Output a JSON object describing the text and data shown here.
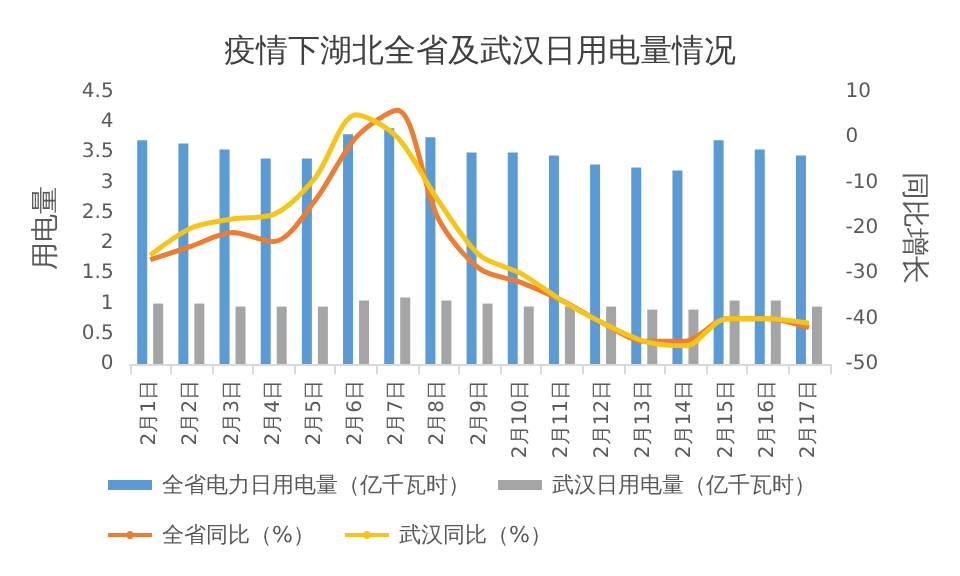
{
  "chart_data": {
    "type": "bar",
    "title": "疫情下湖北全省及武汉日用电量情况",
    "ylabel": "用电量",
    "y2label": "同比增长",
    "categories": [
      "2月1日",
      "2月2日",
      "2月3日",
      "2月4日",
      "2月5日",
      "2月6日",
      "2月7日",
      "2月8日",
      "2月9日",
      "2月10日",
      "2月11日",
      "2月12日",
      "2月13日",
      "2月14日",
      "2月15日",
      "2月16日",
      "2月17日"
    ],
    "series": [
      {
        "name": "全省电力日用电量（亿千瓦时）",
        "color": "#5b9bd5",
        "values": [
          3.7,
          3.65,
          3.55,
          3.4,
          3.4,
          3.8,
          3.9,
          3.75,
          3.5,
          3.5,
          3.45,
          3.3,
          3.25,
          3.2,
          3.7,
          3.55,
          3.45
        ]
      },
      {
        "name": "武汉日用电量（亿千瓦时）",
        "color": "#a5a5a5",
        "values": [
          1.0,
          1.0,
          0.95,
          0.95,
          0.95,
          1.05,
          1.1,
          1.05,
          1.0,
          0.95,
          0.95,
          0.95,
          0.9,
          0.9,
          1.05,
          1.05,
          0.95
        ]
      },
      {
        "name": "全省同比（%）",
        "type": "line",
        "axis": "y2",
        "color": "#ed7d31",
        "values": [
          -27,
          -24,
          -21,
          -23,
          -14,
          0,
          6,
          -18,
          -29,
          -32,
          -36,
          -41,
          -45,
          -45,
          -40,
          -40,
          -42
        ]
      },
      {
        "name": "武汉同比（%）",
        "type": "line",
        "axis": "y2",
        "color": "#f5c518",
        "values": [
          -26,
          -20,
          -18,
          -17,
          -9,
          5,
          0,
          -14,
          -26,
          -30,
          -36,
          -41,
          -45,
          -46,
          -40,
          -40,
          -41
        ]
      }
    ],
    "ylim": [
      0,
      4.5
    ],
    "yticks": [
      0,
      0.5,
      1,
      1.5,
      2,
      2.5,
      3,
      3.5,
      4,
      4.5
    ],
    "y2lim": [
      -50,
      10
    ],
    "y2ticks": [
      -50,
      -40,
      -30,
      -20,
      -10,
      0,
      10
    ],
    "legend": "bottom",
    "grid": false,
    "marker": "none",
    "line_style": "solid"
  }
}
